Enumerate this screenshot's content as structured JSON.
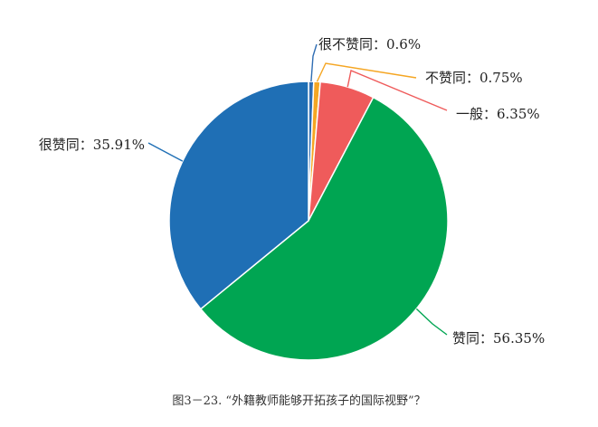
{
  "chart_data": {
    "type": "pie",
    "title": "",
    "start_angle_deg": 0,
    "direction": "clockwise",
    "slices": [
      {
        "label": "很不赞同",
        "value": 0.6,
        "display": "很不赞同：0.6%",
        "color": "#2f6db3"
      },
      {
        "label": "不赞同",
        "value": 0.75,
        "display": "不赞同：0.75%",
        "color": "#f5a623"
      },
      {
        "label": "一般",
        "value": 6.35,
        "display": "一般：6.35%",
        "color": "#ef5b5b"
      },
      {
        "label": "赞同",
        "value": 56.35,
        "display": "赞同：56.35%",
        "color": "#00a552"
      },
      {
        "label": "很赞同",
        "value": 35.91,
        "display": "很赞同：35.91%",
        "color": "#1f6fb5"
      }
    ]
  },
  "caption": "图3－23. “外籍教师能够开拓孩子的国际视野”？"
}
